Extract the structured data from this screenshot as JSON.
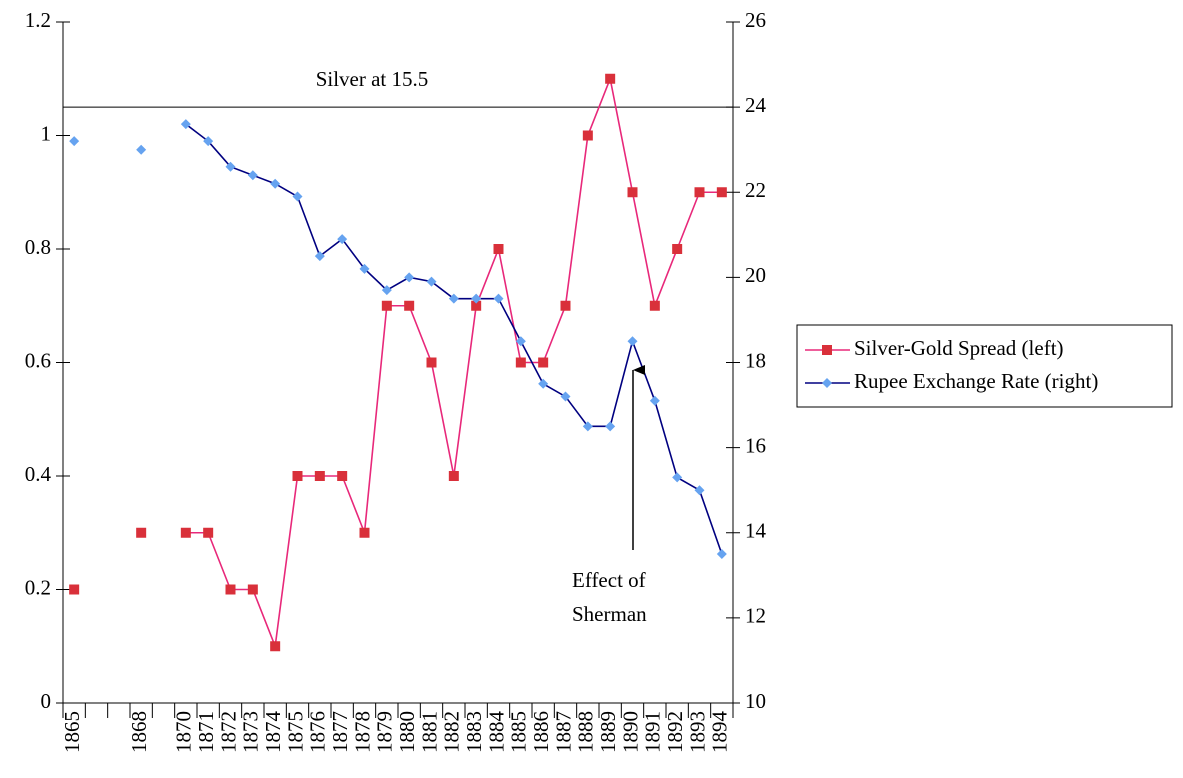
{
  "chart_data": {
    "type": "line",
    "categories": [
      "1865",
      null,
      null,
      "1868",
      null,
      "1870",
      "1871",
      "1872",
      "1873",
      "1874",
      "1875",
      "1876",
      "1877",
      "1878",
      "1879",
      "1880",
      "1881",
      "1882",
      "1883",
      "1884",
      "1885",
      "1886",
      "1887",
      "1888",
      "1889",
      "1890",
      "1891",
      "1892",
      "1893",
      "1894"
    ],
    "series": [
      {
        "name": "Silver-Gold Spread (left)",
        "color": "#e8287a",
        "marker_color": "#d9303a",
        "marker": "square",
        "axis": "y",
        "values": [
          0.2,
          null,
          null,
          0.3,
          null,
          0.3,
          0.3,
          0.2,
          0.2,
          0.1,
          0.4,
          0.4,
          0.4,
          0.3,
          0.7,
          0.7,
          0.6,
          0.4,
          0.7,
          0.8,
          0.6,
          0.6,
          0.7,
          1.0,
          1.1,
          0.9,
          0.7,
          0.8,
          0.9,
          0.9
        ]
      },
      {
        "name": "Rupee Exchange Rate (right)",
        "color": "#000080",
        "marker_color": "#66a3f0",
        "marker": "diamond",
        "axis": "y2",
        "values": [
          23.2,
          null,
          null,
          23.0,
          null,
          23.6,
          23.2,
          22.6,
          22.4,
          22.2,
          21.9,
          20.5,
          20.9,
          20.2,
          19.7,
          20.0,
          19.9,
          19.5,
          19.5,
          19.5,
          18.5,
          17.5,
          17.2,
          16.5,
          16.5,
          18.5,
          17.1,
          15.3,
          15.0,
          13.5
        ]
      }
    ],
    "ylim": [
      0,
      1.2
    ],
    "yticks": [
      0,
      0.2,
      0.4,
      0.6,
      0.8,
      1,
      1.2
    ],
    "y2lim": [
      10,
      26
    ],
    "y2ticks": [
      10,
      12,
      14,
      16,
      18,
      20,
      22,
      24,
      26
    ],
    "reference_line": {
      "value": 24,
      "axis": "y2",
      "label": "Silver at 15.5"
    },
    "annotation": {
      "lines": [
        "Effect of",
        "Sherman"
      ]
    },
    "legend": "right",
    "grid": false
  }
}
